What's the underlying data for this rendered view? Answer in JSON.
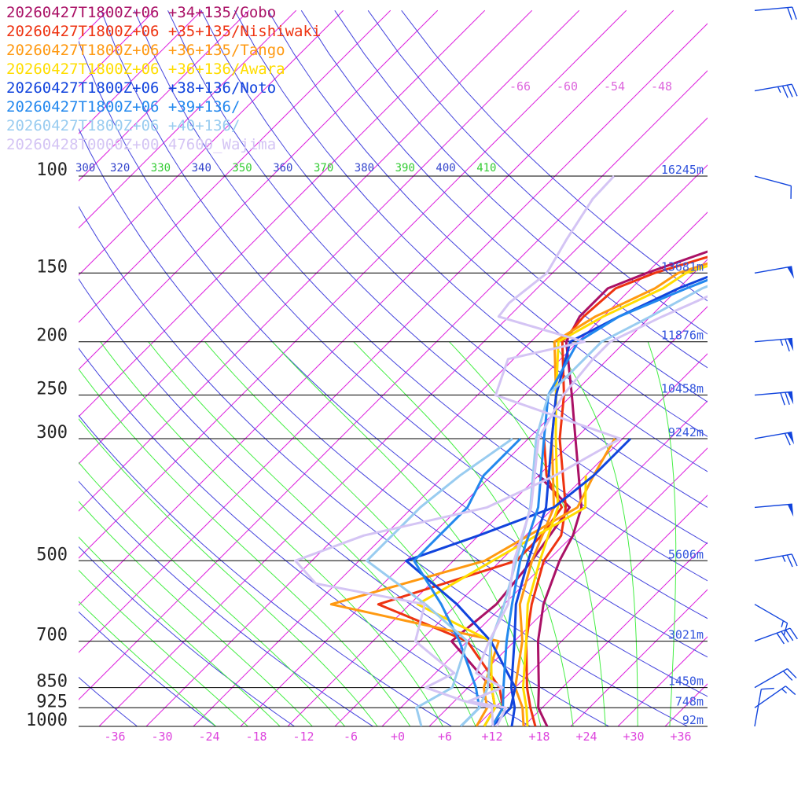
{
  "chart_data": {
    "type": "line",
    "title": "",
    "xlabel": "",
    "ylabel": "",
    "temperature_ticks": [
      "-36",
      "-30",
      "-24",
      "-18",
      "-12",
      "-6",
      "+0",
      "+6",
      "+12",
      "+18",
      "+24",
      "+30",
      "+36"
    ],
    "temperature_values": [
      -36,
      -30,
      -24,
      -18,
      -12,
      -6,
      0,
      6,
      12,
      18,
      24,
      30,
      36
    ],
    "pressure_ticks": [
      {
        "label": "100",
        "p": 100,
        "height": "16245m"
      },
      {
        "label": "150",
        "p": 150,
        "height": "13681m"
      },
      {
        "label": "200",
        "p": 200,
        "height": "11876m"
      },
      {
        "label": "250",
        "p": 250,
        "height": "10458m"
      },
      {
        "label": "300",
        "p": 300,
        "height": "9242m"
      },
      {
        "label": "500",
        "p": 500,
        "height": "5606m"
      },
      {
        "label": "700",
        "p": 700,
        "height": "3021m"
      },
      {
        "label": "850",
        "p": 850,
        "height": "1450m"
      },
      {
        "label": "925",
        "p": 925,
        "height": "748m"
      },
      {
        "label": "1000",
        "p": 1000,
        "height": "92m"
      }
    ],
    "theta_labels": [
      "300",
      "320",
      "330",
      "340",
      "350",
      "360",
      "370",
      "380",
      "390",
      "400",
      "410"
    ],
    "upper_temp_labels": [
      "-66",
      "-60",
      "-54",
      "-48"
    ],
    "ylim": [
      1000,
      100
    ],
    "xlim": [
      -40,
      40
    ],
    "grid": true,
    "legend_position": "top-left",
    "series": [
      {
        "name": "20260427T1800Z+06 +34+135/Gobo",
        "color": "#aa1166",
        "temperature": [
          [
            1000,
            19
          ],
          [
            925,
            15.5
          ],
          [
            850,
            13
          ],
          [
            700,
            7
          ],
          [
            600,
            3
          ],
          [
            500,
            -0.5
          ],
          [
            450,
            -2
          ],
          [
            400,
            -4.5
          ],
          [
            300,
            -14
          ],
          [
            250,
            -20
          ],
          [
            200,
            -27.5
          ],
          [
            180,
            -29
          ],
          [
            160,
            -29
          ],
          [
            150,
            -26
          ],
          [
            130,
            -18
          ],
          [
            110,
            -10
          ],
          [
            100,
            -8
          ],
          [
            95,
            -8.5
          ],
          [
            80,
            -4
          ],
          [
            60,
            8
          ],
          [
            50,
            16
          ]
        ],
        "dewpoint": [
          [
            1000,
            11
          ],
          [
            925,
            10
          ],
          [
            850,
            7
          ],
          [
            700,
            -4
          ],
          [
            600,
            -3
          ],
          [
            500,
            -4
          ],
          [
            400,
            -6
          ],
          [
            350,
            -14
          ]
        ]
      },
      {
        "name": "20260427T1800Z+06 +35+135/Nishiwaki",
        "color": "#ee3311",
        "temperature": [
          [
            1000,
            17.5
          ],
          [
            925,
            14.5
          ],
          [
            850,
            11.5
          ],
          [
            700,
            5.5
          ],
          [
            600,
            1.5
          ],
          [
            500,
            -2.5
          ],
          [
            450,
            -3.5
          ],
          [
            400,
            -6.5
          ],
          [
            300,
            -16
          ],
          [
            250,
            -21
          ],
          [
            200,
            -28
          ],
          [
            180,
            -28.5
          ],
          [
            160,
            -28
          ],
          [
            150,
            -25
          ],
          [
            130,
            -15
          ],
          [
            110,
            -8
          ],
          [
            100,
            -6.5
          ],
          [
            95,
            -6.5
          ],
          [
            80,
            -2.5
          ],
          [
            60,
            8
          ],
          [
            50,
            16
          ]
        ],
        "dewpoint": [
          [
            1000,
            12
          ],
          [
            925,
            11
          ],
          [
            850,
            8
          ],
          [
            700,
            -2
          ],
          [
            600,
            -18
          ],
          [
            500,
            -6
          ],
          [
            450,
            -6
          ],
          [
            400,
            -7
          ],
          [
            350,
            -13
          ],
          [
            300,
            -18
          ]
        ]
      },
      {
        "name": "20260427T1800Z+06 +36+135/Tango",
        "color": "#ff9911",
        "temperature": [
          [
            1000,
            16
          ],
          [
            925,
            13.5
          ],
          [
            850,
            10
          ],
          [
            700,
            5
          ],
          [
            600,
            0
          ],
          [
            500,
            -4
          ],
          [
            400,
            -8
          ],
          [
            300,
            -17
          ],
          [
            250,
            -22
          ],
          [
            200,
            -29
          ],
          [
            180,
            -27
          ],
          [
            160,
            -23
          ],
          [
            150,
            -22
          ],
          [
            130,
            -13
          ],
          [
            110,
            -6
          ],
          [
            100,
            -7
          ],
          [
            80,
            -2
          ],
          [
            60,
            9
          ],
          [
            50,
            16.5
          ]
        ],
        "dewpoint": [
          [
            1000,
            10
          ],
          [
            925,
            9
          ],
          [
            850,
            6
          ],
          [
            700,
            2
          ],
          [
            600,
            -24
          ],
          [
            500,
            -10
          ],
          [
            400,
            -5
          ],
          [
            350,
            -7
          ],
          [
            300,
            -9
          ]
        ]
      },
      {
        "name": "20260427T1800Z+06 +36+136/Awara",
        "color": "#ffdd00",
        "temperature": [
          [
            1000,
            16.5
          ],
          [
            925,
            14
          ],
          [
            850,
            11
          ],
          [
            700,
            5.5
          ],
          [
            600,
            1
          ],
          [
            500,
            -3
          ],
          [
            400,
            -7.5
          ],
          [
            300,
            -16.5
          ],
          [
            250,
            -22
          ],
          [
            200,
            -28.5
          ],
          [
            180,
            -26
          ],
          [
            160,
            -22
          ],
          [
            150,
            -21
          ],
          [
            130,
            -12
          ],
          [
            110,
            -5
          ],
          [
            100,
            -6
          ],
          [
            80,
            -0.5
          ],
          [
            60,
            10
          ],
          [
            50,
            17
          ]
        ],
        "dewpoint": [
          [
            1000,
            11
          ],
          [
            925,
            10
          ],
          [
            850,
            7
          ],
          [
            700,
            1
          ],
          [
            600,
            -13
          ],
          [
            500,
            -9
          ],
          [
            400,
            -4
          ],
          [
            350,
            -8
          ]
        ]
      },
      {
        "name": "20260427T1800Z+06 +38+136/Noto",
        "color": "#1144dd",
        "temperature": [
          [
            1000,
            14.5
          ],
          [
            925,
            12.5
          ],
          [
            850,
            9.5
          ],
          [
            700,
            4
          ],
          [
            600,
            -0.5
          ],
          [
            500,
            -4.5
          ],
          [
            400,
            -9
          ],
          [
            300,
            -17
          ],
          [
            250,
            -22
          ],
          [
            200,
            -27
          ],
          [
            180,
            -24
          ],
          [
            160,
            -20
          ],
          [
            150,
            -17
          ],
          [
            130,
            -11
          ],
          [
            110,
            -5
          ],
          [
            100,
            -3.5
          ],
          [
            80,
            2
          ],
          [
            60,
            11
          ],
          [
            50,
            18
          ]
        ],
        "dewpoint": [
          [
            1000,
            12
          ],
          [
            925,
            12
          ],
          [
            850,
            10
          ],
          [
            700,
            1
          ],
          [
            600,
            -8
          ],
          [
            500,
            -20
          ],
          [
            450,
            -14
          ],
          [
            400,
            -8
          ],
          [
            350,
            -7
          ],
          [
            300,
            -7
          ]
        ]
      },
      {
        "name": "20260427T1800Z+06 +39+136/",
        "color": "#2288ee",
        "temperature": [
          [
            1000,
            12
          ],
          [
            925,
            11
          ],
          [
            850,
            8.5
          ],
          [
            700,
            3
          ],
          [
            600,
            -1
          ],
          [
            500,
            -5.5
          ],
          [
            400,
            -10
          ],
          [
            300,
            -18
          ],
          [
            250,
            -23
          ],
          [
            200,
            -26
          ],
          [
            180,
            -24
          ],
          [
            160,
            -19
          ],
          [
            150,
            -16
          ],
          [
            130,
            -10
          ],
          [
            110,
            -4
          ],
          [
            100,
            -2.5
          ],
          [
            80,
            3
          ],
          [
            60,
            12
          ],
          [
            50,
            19
          ]
        ],
        "dewpoint": [
          [
            1000,
            8
          ],
          [
            925,
            8
          ],
          [
            850,
            5
          ],
          [
            700,
            -3
          ],
          [
            600,
            -10
          ],
          [
            500,
            -19
          ],
          [
            450,
            -19
          ],
          [
            400,
            -19
          ],
          [
            350,
            -21
          ],
          [
            300,
            -21
          ]
        ]
      },
      {
        "name": "20260427T1800Z+06 +40+136/",
        "color": "#99ccf0",
        "temperature": [
          [
            1000,
            8
          ],
          [
            925,
            8
          ],
          [
            850,
            6.5
          ],
          [
            700,
            1
          ],
          [
            600,
            -2
          ],
          [
            500,
            -6
          ],
          [
            400,
            -11
          ],
          [
            300,
            -19
          ],
          [
            250,
            -23
          ],
          [
            200,
            -23
          ],
          [
            180,
            -20
          ],
          [
            160,
            -17
          ],
          [
            150,
            -14
          ],
          [
            130,
            -8
          ],
          [
            110,
            -3
          ],
          [
            100,
            -1
          ],
          [
            80,
            4
          ],
          [
            60,
            13
          ],
          [
            50,
            20
          ]
        ],
        "dewpoint": [
          [
            1000,
            3
          ],
          [
            925,
            0
          ],
          [
            850,
            2
          ],
          [
            700,
            -2
          ],
          [
            600,
            -12
          ],
          [
            500,
            -25
          ],
          [
            450,
            -25
          ],
          [
            400,
            -25
          ],
          [
            350,
            -24
          ],
          [
            300,
            -22
          ]
        ]
      },
      {
        "name": "20260428T0000Z+00 47600_Wajima",
        "color": "#d4c4f4",
        "temperature": [
          [
            1000,
            12.6
          ],
          [
            925,
            11.4
          ],
          [
            900,
            5.8
          ],
          [
            850,
            8.4
          ],
          [
            800,
            3.2
          ],
          [
            700,
            0.8
          ],
          [
            600,
            -1.5
          ],
          [
            500,
            -6.3
          ],
          [
            400,
            -10.9
          ],
          [
            300,
            -18.7
          ],
          [
            250,
            -21.1
          ],
          [
            215,
            -21.9
          ],
          [
            200,
            -21.9
          ],
          [
            180,
            -18.5
          ],
          [
            160,
            -14
          ],
          [
            150,
            -12.4
          ],
          [
            130,
            -8
          ],
          [
            110,
            -4
          ],
          [
            100,
            -3.5
          ]
        ],
        "dewpoint": [
          [
            1000,
            12.1
          ],
          [
            925,
            9.6
          ],
          [
            900,
            5.3
          ],
          [
            850,
            -1.4
          ],
          [
            800,
            0.4
          ],
          [
            750,
            -4
          ],
          [
            700,
            -8.6
          ],
          [
            600,
            -12.1
          ],
          [
            550,
            -28.6
          ],
          [
            500,
            -34.1
          ],
          [
            450,
            -28.6
          ],
          [
            400,
            -16.5
          ],
          [
            350,
            -11.9
          ],
          [
            300,
            -8.3
          ],
          [
            250,
            -29.7
          ],
          [
            215,
            -32.7
          ],
          [
            200,
            -25.2
          ],
          [
            180,
            -39.3
          ],
          [
            170,
            -39.7
          ],
          [
            150,
            -38.7
          ],
          [
            130,
            -40.5
          ],
          [
            110,
            -42.3
          ],
          [
            100,
            -42.5
          ]
        ]
      }
    ],
    "wind_barbs": [
      {
        "p": 1000,
        "dir": 190,
        "speed": 10
      },
      {
        "p": 925,
        "dir": 235,
        "speed": 15
      },
      {
        "p": 850,
        "dir": 240,
        "speed": 20
      },
      {
        "p": 700,
        "dir": 250,
        "speed": 40
      },
      {
        "p": 600,
        "dir": 300,
        "speed": 15
      },
      {
        "p": 500,
        "dir": 260,
        "speed": 25
      },
      {
        "p": 400,
        "dir": 265,
        "speed": 50
      },
      {
        "p": 300,
        "dir": 260,
        "speed": 60
      },
      {
        "p": 250,
        "dir": 265,
        "speed": 70
      },
      {
        "p": 200,
        "dir": 265,
        "speed": 65
      },
      {
        "p": 150,
        "dir": 260,
        "speed": 50
      },
      {
        "p": 100,
        "dir": 285,
        "speed": 10
      },
      {
        "p": 70,
        "dir": 260,
        "speed": 35
      },
      {
        "p": 50,
        "dir": 265,
        "speed": 20
      }
    ]
  }
}
